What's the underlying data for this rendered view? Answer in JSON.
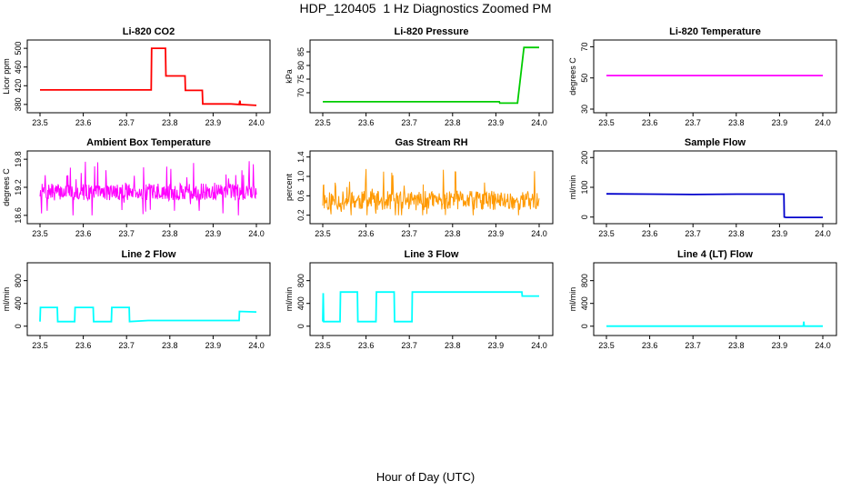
{
  "figure": {
    "title": "HDP_120405  1 Hz Diagnostics Zoomed PM",
    "xlabel": "Hour of Day (UTC)"
  },
  "chart_data": [
    {
      "type": "line",
      "title": "Li-820 CO2",
      "ylabel": "Licor ppm",
      "color": "#ff0000",
      "xlim": [
        23.5,
        24.0
      ],
      "ylim": [
        370,
        510
      ],
      "xticks": [
        "23.5",
        "23.6",
        "23.7",
        "23.8",
        "23.9",
        "24.0"
      ],
      "yticks": [
        "380",
        "420",
        "460",
        "500"
      ],
      "x": [
        23.5,
        23.757,
        23.758,
        23.79,
        23.791,
        23.835,
        23.836,
        23.875,
        23.876,
        23.94,
        23.96,
        23.962,
        23.963,
        24.0
      ],
      "y": [
        411,
        411,
        500,
        500,
        441,
        441,
        410,
        410,
        381,
        381,
        380,
        388,
        380,
        378
      ]
    },
    {
      "type": "line",
      "title": "Li-820 Pressure",
      "ylabel": "kPa",
      "color": "#00cc00",
      "xlim": [
        23.5,
        24.0
      ],
      "ylim": [
        64,
        88
      ],
      "xticks": [
        "23.5",
        "23.6",
        "23.7",
        "23.8",
        "23.9",
        "24.0"
      ],
      "yticks": [
        "70",
        "75",
        "80",
        "85"
      ],
      "x": [
        23.5,
        23.908,
        23.909,
        23.95,
        23.96,
        23.965,
        23.97,
        24.0
      ],
      "y": [
        66.7,
        66.7,
        66.2,
        66.2,
        80.0,
        86.6,
        86.6,
        86.6
      ]
    },
    {
      "type": "line",
      "title": "Li-820 Temperature",
      "ylabel": "degrees C",
      "color": "#ff00ff",
      "xlim": [
        23.5,
        24.0
      ],
      "ylim": [
        30,
        72
      ],
      "xticks": [
        "23.5",
        "23.6",
        "23.7",
        "23.8",
        "23.9",
        "24.0"
      ],
      "yticks": [
        "30",
        "50",
        "70"
      ],
      "x": [
        23.5,
        24.0
      ],
      "y": [
        51.5,
        51.5
      ]
    },
    {
      "type": "line",
      "title": "Ambient Box Temperature",
      "ylabel": "degrees C",
      "color": "#ff00ff",
      "xlim": [
        23.5,
        24.0
      ],
      "ylim": [
        18.5,
        19.9
      ],
      "xticks": [
        "23.5",
        "23.6",
        "23.7",
        "23.8",
        "23.9",
        "24.0"
      ],
      "yticks": [
        "18.6",
        "19.2",
        "19.8"
      ],
      "noise": {
        "center": 19.1,
        "min": 18.6,
        "max": 19.8,
        "spread": 0.18,
        "seed": 7
      },
      "x": [
        23.5,
        24.0
      ],
      "y": [
        19.1,
        19.1
      ]
    },
    {
      "type": "line",
      "title": "Gas Stream RH",
      "ylabel": "percent",
      "color": "#ff9900",
      "xlim": [
        23.5,
        24.0
      ],
      "ylim": [
        0.1,
        1.45
      ],
      "xticks": [
        "23.5",
        "23.6",
        "23.7",
        "23.8",
        "23.9",
        "24.0"
      ],
      "yticks": [
        "0.2",
        "0.6",
        "1.0",
        "1.4"
      ],
      "noise": {
        "center": 0.5,
        "min": 0.2,
        "max": 1.4,
        "spread": 0.2,
        "seed": 11
      },
      "x": [
        23.5,
        24.0
      ],
      "y": [
        0.5,
        0.5
      ]
    },
    {
      "type": "line",
      "title": "Sample Flow",
      "ylabel": "ml/min",
      "color": "#0000cc",
      "xlim": [
        23.5,
        24.0
      ],
      "ylim": [
        -10,
        210
      ],
      "xticks": [
        "23.5",
        "23.6",
        "23.7",
        "23.8",
        "23.9",
        "24.0"
      ],
      "yticks": [
        "0",
        "100",
        "200"
      ],
      "x": [
        23.5,
        23.6,
        23.7,
        23.8,
        23.91,
        23.911,
        23.915,
        24.0
      ],
      "y": [
        78,
        77,
        76,
        77,
        77,
        0,
        -1,
        -1
      ]
    },
    {
      "type": "line",
      "title": "Line 2 Flow",
      "ylabel": "ml/min",
      "color": "#00ffff",
      "xlim": [
        23.5,
        24.0
      ],
      "ylim": [
        -100,
        1050
      ],
      "xticks": [
        "23.5",
        "23.6",
        "23.7",
        "23.8",
        "23.9",
        "24.0"
      ],
      "yticks": [
        "0",
        "400",
        "800"
      ],
      "x": [
        23.5,
        23.501,
        23.54,
        23.541,
        23.58,
        23.581,
        23.623,
        23.624,
        23.665,
        23.666,
        23.706,
        23.707,
        23.75,
        23.96,
        23.961,
        24.0
      ],
      "y": [
        80,
        330,
        330,
        80,
        80,
        330,
        330,
        80,
        80,
        330,
        330,
        80,
        100,
        100,
        260,
        250
      ]
    },
    {
      "type": "line",
      "title": "Line 3 Flow",
      "ylabel": "ml/min",
      "color": "#00ffff",
      "xlim": [
        23.5,
        24.0
      ],
      "ylim": [
        -100,
        1050
      ],
      "xticks": [
        "23.5",
        "23.6",
        "23.7",
        "23.8",
        "23.9",
        "24.0"
      ],
      "yticks": [
        "0",
        "400",
        "800"
      ],
      "x": [
        23.5,
        23.501,
        23.502,
        23.54,
        23.541,
        23.58,
        23.581,
        23.623,
        23.624,
        23.665,
        23.666,
        23.706,
        23.707,
        23.96,
        23.961,
        24.0
      ],
      "y": [
        80,
        580,
        80,
        80,
        600,
        600,
        80,
        80,
        600,
        600,
        80,
        80,
        600,
        600,
        530,
        530
      ]
    },
    {
      "type": "line",
      "title": "Line 4 (LT) Flow",
      "ylabel": "ml/min",
      "color": "#00ffff",
      "xlim": [
        23.5,
        24.0
      ],
      "ylim": [
        -100,
        1050
      ],
      "xticks": [
        "23.5",
        "23.6",
        "23.7",
        "23.8",
        "23.9",
        "24.0"
      ],
      "yticks": [
        "0",
        "400",
        "800"
      ],
      "x": [
        23.5,
        23.955,
        23.956,
        23.957,
        23.96,
        24.0
      ],
      "y": [
        0,
        0,
        80,
        0,
        0,
        0
      ]
    }
  ]
}
